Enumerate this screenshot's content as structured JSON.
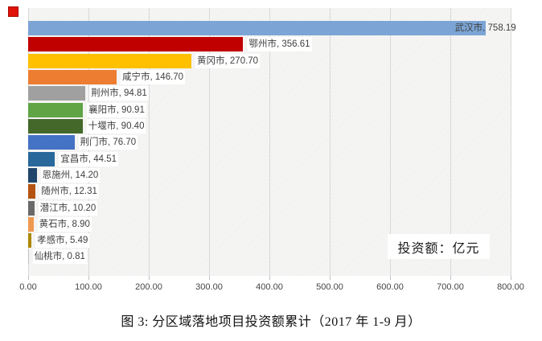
{
  "decoration": {
    "red_marker_color": "#df1309"
  },
  "chart_data": {
    "type": "bar",
    "orientation": "horizontal",
    "title": "",
    "xlabel": "",
    "ylabel": "",
    "xlim": [
      0,
      800
    ],
    "grid": "vertical",
    "x_ticks": [
      "0.00",
      "100.00",
      "200.00",
      "300.00",
      "400.00",
      "500.00",
      "600.00",
      "700.00",
      "800.00"
    ],
    "annotation": "投资额：亿元",
    "label_format": "{category}, {value}",
    "categories": [
      "武汉市",
      "鄂州市",
      "黄冈市",
      "咸宁市",
      "荆州市",
      "襄阳市",
      "十堰市",
      "荆门市",
      "宜昌市",
      "恩施州",
      "随州市",
      "潜江市",
      "黄石市",
      "孝感市",
      "仙桃市"
    ],
    "values": [
      758.19,
      356.61,
      270.7,
      146.7,
      94.81,
      90.91,
      90.4,
      76.7,
      44.51,
      14.2,
      12.31,
      10.2,
      8.9,
      5.49,
      0.81
    ],
    "value_labels": [
      "758.19",
      "356.61",
      "270.70",
      "146.70",
      "94.81",
      "90.91",
      "90.40",
      "76.70",
      "44.51",
      "14.20",
      "12.31",
      "10.20",
      "8.90",
      "5.49",
      "0.81"
    ],
    "bar_colors": [
      "#7ca5d6",
      "#c00000",
      "#ffc000",
      "#ed7d31",
      "#a0a0a0",
      "#60a446",
      "#44682a",
      "#4472c4",
      "#28689a",
      "#20456b",
      "#b4530f",
      "#696969",
      "#ee9950",
      "#ad8700",
      "#bfbfbf"
    ],
    "gridline_color": "#d9d9d9",
    "label_text_color": "#3f3f3f"
  },
  "caption": {
    "text": "图 3: 分区域落地项目投资额累计（2017 年 1-9 月）"
  }
}
